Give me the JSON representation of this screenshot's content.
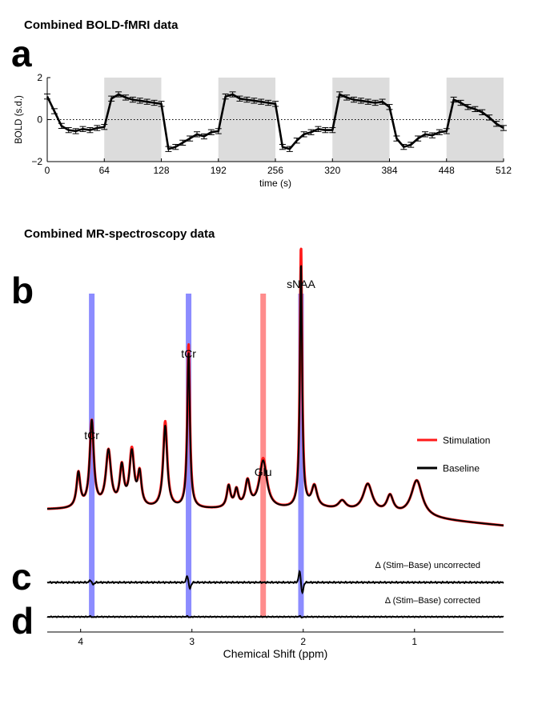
{
  "chart_data": [
    {
      "id": "a",
      "type": "line",
      "panel_label": "a",
      "title": "Combined BOLD-fMRI data",
      "xlabel": "time (s)",
      "ylabel": "BOLD (s.d.)",
      "xlim": [
        0,
        512
      ],
      "ylim": [
        -2,
        2
      ],
      "xticks": [
        0,
        64,
        128,
        192,
        256,
        320,
        384,
        448,
        512
      ],
      "yticks": [
        -2,
        0,
        2
      ],
      "zero_line": "dotted",
      "stimulation_blocks": [
        [
          64,
          128
        ],
        [
          192,
          256
        ],
        [
          320,
          384
        ],
        [
          448,
          512
        ]
      ],
      "block_color": "#dcdcdc",
      "error_bar": 0.12,
      "series": [
        {
          "name": "BOLD",
          "color": "#000000",
          "x": [
            0,
            8,
            16,
            24,
            32,
            40,
            48,
            56,
            64,
            72,
            80,
            88,
            96,
            104,
            112,
            120,
            128,
            136,
            144,
            152,
            160,
            168,
            176,
            184,
            192,
            200,
            208,
            216,
            224,
            232,
            240,
            248,
            256,
            264,
            272,
            280,
            288,
            296,
            304,
            312,
            320,
            328,
            336,
            344,
            352,
            360,
            368,
            376,
            384,
            392,
            400,
            408,
            416,
            424,
            432,
            440,
            448,
            456,
            464,
            472,
            480,
            488,
            496,
            504,
            512
          ],
          "y": [
            1.1,
            0.4,
            -0.3,
            -0.5,
            -0.55,
            -0.45,
            -0.5,
            -0.4,
            -0.35,
            1.0,
            1.2,
            1.05,
            0.95,
            0.9,
            0.85,
            0.8,
            0.75,
            -1.4,
            -1.3,
            -1.1,
            -0.9,
            -0.7,
            -0.8,
            -0.6,
            -0.55,
            1.1,
            1.2,
            1.0,
            0.95,
            0.9,
            0.85,
            0.8,
            0.75,
            -1.3,
            -1.4,
            -1.0,
            -0.7,
            -0.6,
            -0.45,
            -0.5,
            -0.5,
            1.2,
            1.05,
            0.95,
            0.9,
            0.85,
            0.8,
            0.85,
            0.6,
            -0.9,
            -1.3,
            -1.2,
            -0.9,
            -0.7,
            -0.75,
            -0.6,
            -0.55,
            0.95,
            0.8,
            0.6,
            0.5,
            0.35,
            0.1,
            -0.2,
            -0.4
          ]
        }
      ]
    },
    {
      "id": "b",
      "type": "line",
      "panel_label": "b",
      "title": "Combined MR-spectroscopy data",
      "xlabel": "Chemical Shift (ppm)",
      "xlim": [
        4.3,
        0.2
      ],
      "xticks": [
        4,
        3,
        2,
        1
      ],
      "legend_position": "right",
      "series": [
        {
          "name": "Stimulation",
          "color": "#ff1a1a"
        },
        {
          "name": "Baseline",
          "color": "#000000"
        }
      ],
      "baseline_level": 0.1,
      "peaks": [
        {
          "ppm": 4.02,
          "baseline": 0.16,
          "stimulation": 0.16,
          "width": 0.02
        },
        {
          "ppm": 3.9,
          "baseline": 0.4,
          "stimulation": 0.4,
          "width": 0.022
        },
        {
          "ppm": 3.75,
          "baseline": 0.26,
          "stimulation": 0.26,
          "width": 0.028
        },
        {
          "ppm": 3.63,
          "baseline": 0.18,
          "stimulation": 0.18,
          "width": 0.022
        },
        {
          "ppm": 3.54,
          "baseline": 0.25,
          "stimulation": 0.26,
          "width": 0.025
        },
        {
          "ppm": 3.47,
          "baseline": 0.15,
          "stimulation": 0.15,
          "width": 0.02
        },
        {
          "ppm": 3.24,
          "baseline": 0.38,
          "stimulation": 0.4,
          "width": 0.022
        },
        {
          "ppm": 3.03,
          "baseline": 0.72,
          "stimulation": 0.76,
          "width": 0.014
        },
        {
          "ppm": 2.67,
          "baseline": 0.1,
          "stimulation": 0.1,
          "width": 0.02
        },
        {
          "ppm": 2.6,
          "baseline": 0.08,
          "stimulation": 0.08,
          "width": 0.02
        },
        {
          "ppm": 2.5,
          "baseline": 0.12,
          "stimulation": 0.12,
          "width": 0.025
        },
        {
          "ppm": 2.36,
          "baseline": 0.22,
          "stimulation": 0.23,
          "width": 0.04
        },
        {
          "ppm": 2.02,
          "baseline": 1.13,
          "stimulation": 1.21,
          "width": 0.012
        },
        {
          "ppm": 1.9,
          "baseline": 0.1,
          "stimulation": 0.1,
          "width": 0.03
        },
        {
          "ppm": 1.65,
          "baseline": 0.04,
          "stimulation": 0.04,
          "width": 0.04
        },
        {
          "ppm": 1.42,
          "baseline": 0.13,
          "stimulation": 0.13,
          "width": 0.05
        },
        {
          "ppm": 1.22,
          "baseline": 0.08,
          "stimulation": 0.08,
          "width": 0.035
        },
        {
          "ppm": 0.98,
          "baseline": 0.17,
          "stimulation": 0.17,
          "width": 0.06
        }
      ],
      "highlights": [
        {
          "ppm": 3.9,
          "color": "#8c8cff",
          "label": "tCr"
        },
        {
          "ppm": 3.03,
          "color": "#8c8cff",
          "label": "tCr"
        },
        {
          "ppm": 2.36,
          "color": "#ff8c8c",
          "label": "Glu"
        },
        {
          "ppm": 2.02,
          "color": "#8c8cff",
          "label": "sNAA"
        }
      ]
    },
    {
      "id": "c",
      "type": "line",
      "panel_label": "c",
      "label": "Δ (Stim–Base) uncorrected",
      "series": [
        {
          "name": "Δ uncorrected",
          "color": "#000000"
        }
      ],
      "features": [
        {
          "ppm": 3.9,
          "amplitude": 0.35
        },
        {
          "ppm": 3.03,
          "amplitude": 1.0
        },
        {
          "ppm": 2.02,
          "amplitude": 1.7
        }
      ]
    },
    {
      "id": "d",
      "type": "line",
      "panel_label": "d",
      "label": "Δ (Stim–Base) corrected",
      "series": [
        {
          "name": "Δ corrected",
          "color": "#000000"
        }
      ],
      "features": [
        {
          "ppm": 3.9,
          "amplitude": 0.12
        },
        {
          "ppm": 3.03,
          "amplitude": 0.12
        },
        {
          "ppm": 2.02,
          "amplitude": 0.15
        }
      ]
    }
  ]
}
